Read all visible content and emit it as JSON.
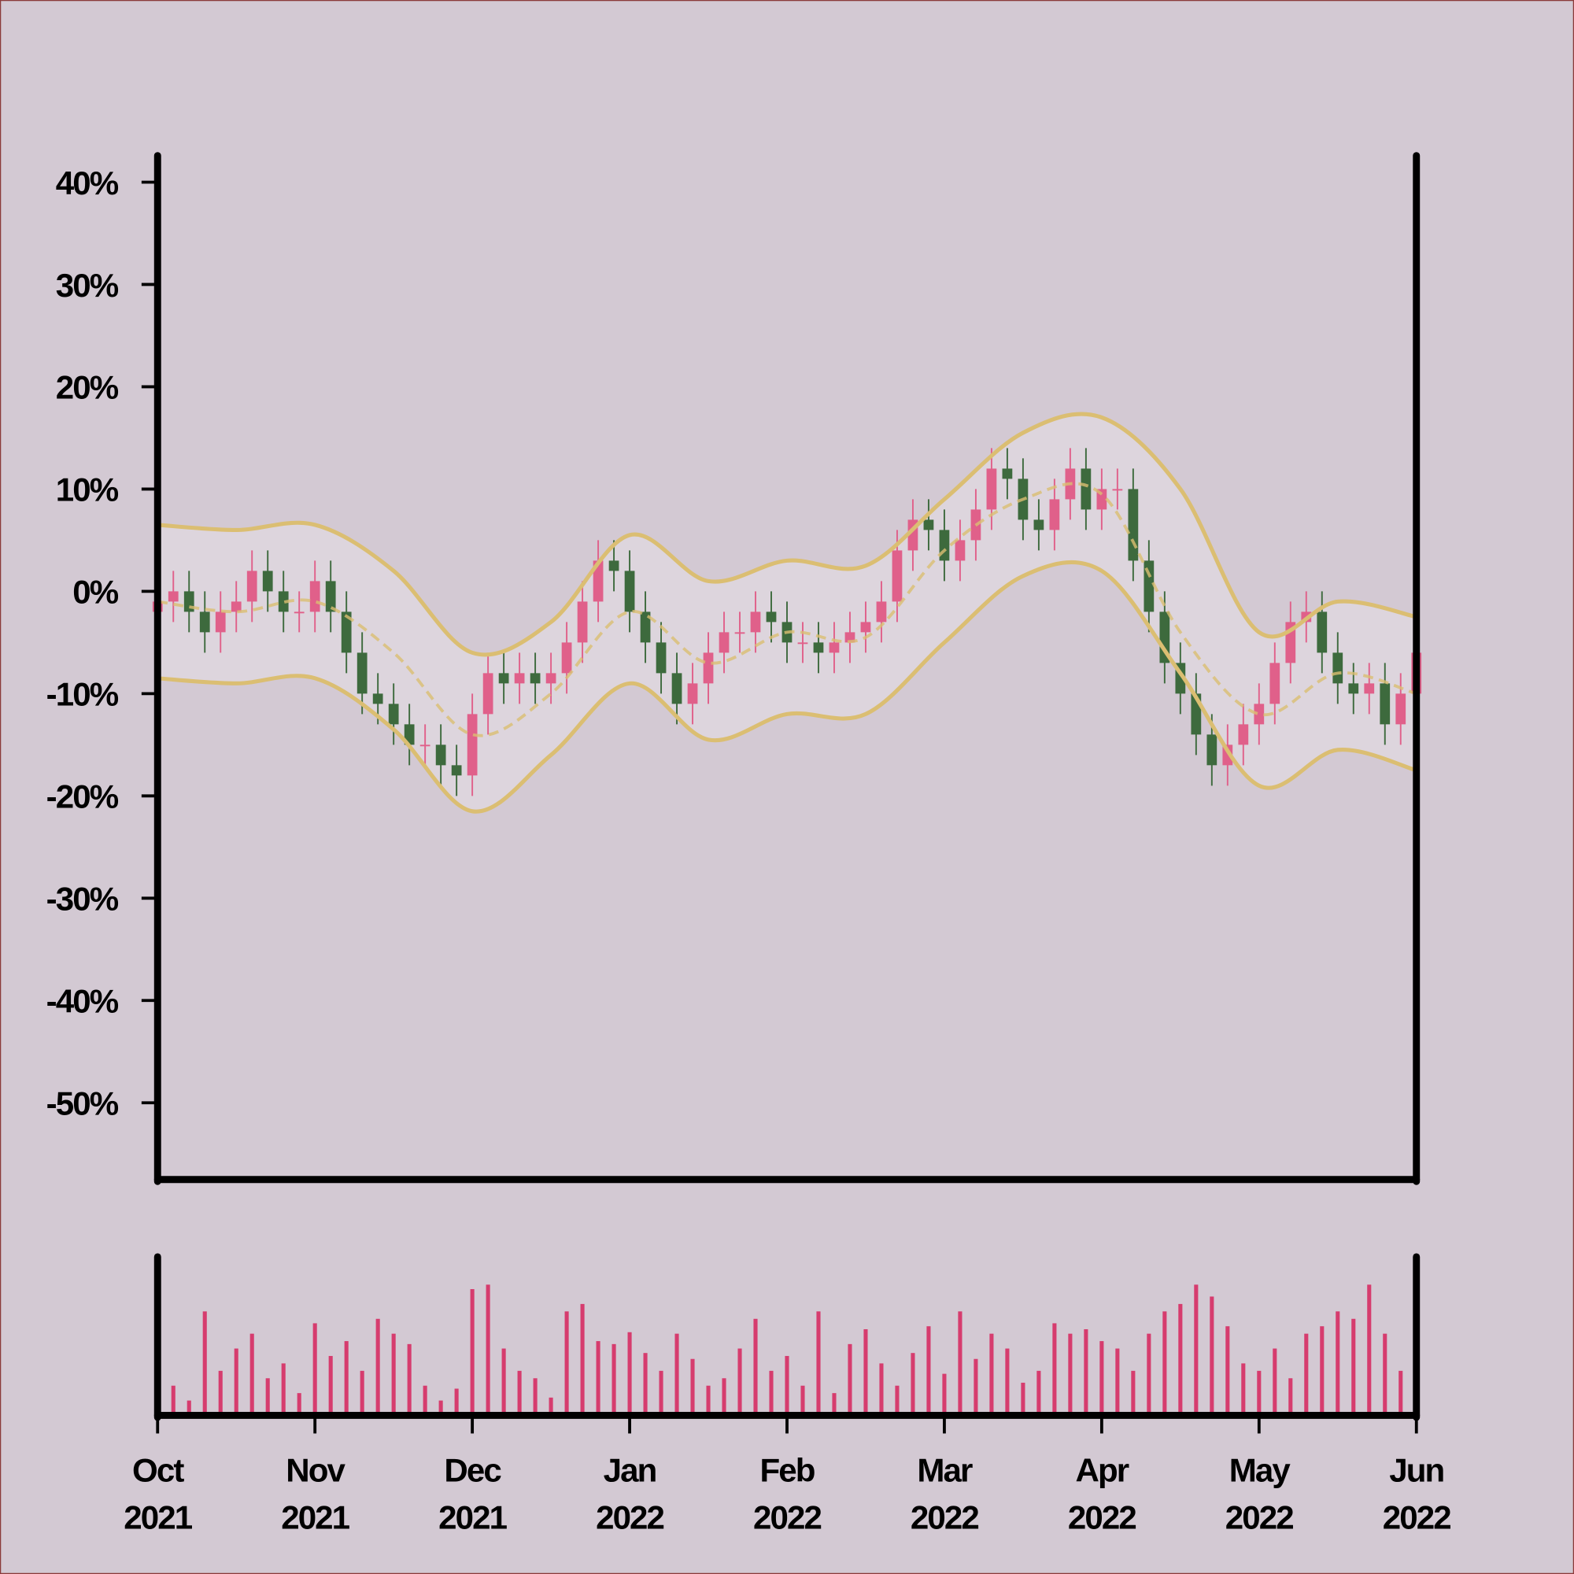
{
  "chart_data": [
    {
      "type": "candlestick",
      "x": [
        0,
        0.1,
        0.2,
        0.3,
        0.4,
        0.5,
        0.6,
        0.7,
        0.8,
        0.9,
        1,
        1.1,
        1.2,
        1.3,
        1.4,
        1.5,
        1.6,
        1.7,
        1.8,
        1.9,
        2,
        2.1,
        2.2,
        2.3,
        2.4,
        2.5,
        2.6,
        2.7,
        2.8,
        2.9,
        3,
        3.1,
        3.2,
        3.3,
        3.4,
        3.5,
        3.6,
        3.7,
        3.8,
        3.9,
        4,
        4.1,
        4.2,
        4.3,
        4.4,
        4.5,
        4.6,
        4.7,
        4.8,
        4.9,
        5,
        5.1,
        5.2,
        5.3,
        5.4,
        5.5,
        5.6,
        5.7,
        5.8,
        5.9,
        6,
        6.1,
        6.2,
        6.3,
        6.4,
        6.5,
        6.6,
        6.7,
        6.8,
        6.9,
        7,
        7.1,
        7.2,
        7.3,
        7.4,
        7.5,
        7.6,
        7.7,
        7.8,
        7.9,
        8
      ],
      "open": [
        -2,
        -1,
        0,
        -2,
        -4,
        -2,
        -1,
        2,
        0,
        -2,
        -2,
        1,
        -2,
        -6,
        -10,
        -11,
        -13,
        -15,
        -15,
        -17,
        -18,
        -12,
        -8,
        -9,
        -8,
        -9,
        -8,
        -5,
        -1,
        3,
        2,
        -2,
        -5,
        -8,
        -11,
        -9,
        -6,
        -4,
        -4,
        -2,
        -3,
        -5,
        -5,
        -6,
        -5,
        -4,
        -3,
        -1,
        4,
        7,
        6,
        3,
        5,
        8,
        12,
        11,
        7,
        6,
        9,
        12,
        8,
        10,
        10,
        3,
        -2,
        -7,
        -10,
        -14,
        -17,
        -15,
        -13,
        -11,
        -7,
        -3,
        -2,
        -6,
        -9,
        -10,
        -9,
        -13,
        -10
      ],
      "high": [
        1,
        2,
        2,
        0,
        0,
        1,
        4,
        4,
        2,
        0,
        3,
        3,
        0,
        -4,
        -8,
        -9,
        -11,
        -13,
        -13,
        -15,
        -10,
        -6,
        -6,
        -6,
        -6,
        -6,
        -3,
        1,
        5,
        5,
        4,
        0,
        -3,
        -6,
        -7,
        -4,
        -2,
        -2,
        0,
        0,
        -1,
        -3,
        -3,
        -3,
        -2,
        -1,
        1,
        6,
        9,
        9,
        8,
        7,
        10,
        14,
        14,
        13,
        9,
        11,
        14,
        14,
        12,
        12,
        12,
        5,
        0,
        -5,
        -8,
        -12,
        -13,
        -11,
        -9,
        -5,
        -1,
        0,
        0,
        -4,
        -7,
        -7,
        -7,
        -8,
        -4
      ],
      "low": [
        -4,
        -3,
        -4,
        -6,
        -6,
        -4,
        -3,
        -2,
        -4,
        -4,
        -4,
        -4,
        -8,
        -12,
        -13,
        -15,
        -17,
        -17,
        -19,
        -20,
        -20,
        -14,
        -11,
        -11,
        -11,
        -11,
        -10,
        -7,
        -3,
        0,
        -4,
        -7,
        -10,
        -13,
        -13,
        -11,
        -8,
        -6,
        -6,
        -5,
        -7,
        -7,
        -8,
        -8,
        -7,
        -6,
        -5,
        -3,
        2,
        4,
        1,
        1,
        3,
        6,
        9,
        5,
        4,
        4,
        7,
        6,
        6,
        8,
        1,
        -4,
        -9,
        -12,
        -16,
        -19,
        -19,
        -17,
        -15,
        -13,
        -9,
        -5,
        -8,
        -11,
        -12,
        -12,
        -15,
        -15,
        -12
      ],
      "close": [
        -1,
        0,
        -2,
        -4,
        -2,
        -1,
        2,
        0,
        -2,
        -2,
        1,
        -2,
        -6,
        -10,
        -11,
        -13,
        -15,
        -15,
        -17,
        -18,
        -12,
        -8,
        -9,
        -8,
        -9,
        -8,
        -5,
        -1,
        3,
        2,
        -2,
        -5,
        -8,
        -11,
        -9,
        -6,
        -4,
        -4,
        -2,
        -3,
        -5,
        -5,
        -6,
        -5,
        -4,
        -3,
        -1,
        4,
        7,
        6,
        3,
        5,
        8,
        12,
        11,
        7,
        6,
        9,
        12,
        8,
        10,
        10,
        3,
        -2,
        -7,
        -10,
        -14,
        -17,
        -15,
        -13,
        -11,
        -7,
        -3,
        -2,
        -6,
        -9,
        -10,
        -9,
        -13,
        -10,
        -6
      ],
      "up_color": "#e0608a",
      "down_color": "#3d6a3d",
      "bands": {
        "x": [
          0,
          0.5,
          1,
          1.5,
          2,
          2.5,
          3,
          3.5,
          4,
          4.5,
          5,
          5.5,
          6,
          6.5,
          7,
          7.5,
          8
        ],
        "upper": [
          6.5,
          6,
          6.5,
          2,
          -6,
          -3,
          5.5,
          1,
          3,
          2.5,
          9,
          15.5,
          17,
          10,
          -4,
          -1,
          -2.5
        ],
        "middle": [
          -1,
          -2,
          -1,
          -6,
          -14,
          -10,
          -2,
          -7,
          -4,
          -4.5,
          4,
          9,
          9.5,
          -4,
          -12,
          -8,
          -10
        ],
        "lower": [
          -8.5,
          -9,
          -8.5,
          -13.5,
          -21.5,
          -16,
          -9,
          -14.5,
          -12,
          -12,
          -5,
          1.5,
          2,
          -8,
          -19,
          -15.5,
          -17.5
        ],
        "color": "#dbbe72",
        "fill": "#ddd5dd"
      },
      "xlim": [
        0,
        8
      ],
      "ylim": [
        -57.5,
        42.6
      ],
      "yticks": [
        {
          "value": 40,
          "label": "40%"
        },
        {
          "value": 30,
          "label": "30%"
        },
        {
          "value": 20,
          "label": "20%"
        },
        {
          "value": 10,
          "label": "10%"
        },
        {
          "value": 0,
          "label": "0%"
        },
        {
          "value": -10,
          "label": "-10%"
        },
        {
          "value": -20,
          "label": "-20%"
        },
        {
          "value": -30,
          "label": "-30%"
        },
        {
          "value": -40,
          "label": "-40%"
        },
        {
          "value": -50,
          "label": "-50%"
        }
      ]
    },
    {
      "type": "bar",
      "x": [
        0,
        0.1,
        0.2,
        0.3,
        0.4,
        0.5,
        0.6,
        0.7,
        0.8,
        0.9,
        1,
        1.1,
        1.2,
        1.3,
        1.4,
        1.5,
        1.6,
        1.7,
        1.8,
        1.9,
        2,
        2.1,
        2.2,
        2.3,
        2.4,
        2.5,
        2.6,
        2.7,
        2.8,
        2.9,
        3,
        3.1,
        3.2,
        3.3,
        3.4,
        3.5,
        3.6,
        3.7,
        3.8,
        3.9,
        4,
        4.1,
        4.2,
        4.3,
        4.4,
        4.5,
        4.6,
        4.7,
        4.8,
        4.9,
        5,
        5.1,
        5.2,
        5.3,
        5.4,
        5.5,
        5.6,
        5.7,
        5.8,
        5.9,
        6,
        6.1,
        6.2,
        6.3,
        6.4,
        6.5,
        6.6,
        6.7,
        6.8,
        6.9,
        7,
        7.1,
        7.2,
        7.3,
        7.4,
        7.5,
        7.6,
        7.7,
        7.8,
        7.9,
        8
      ],
      "values": [
        60,
        20,
        10,
        70,
        30,
        45,
        55,
        25,
        35,
        15,
        62,
        40,
        50,
        30,
        65,
        55,
        48,
        20,
        10,
        18,
        85,
        88,
        45,
        30,
        25,
        12,
        70,
        75,
        50,
        48,
        56,
        42,
        30,
        55,
        38,
        20,
        25,
        45,
        65,
        30,
        40,
        20,
        70,
        15,
        48,
        58,
        35,
        20,
        42,
        60,
        28,
        70,
        38,
        55,
        45,
        22,
        30,
        62,
        55,
        58,
        50,
        45,
        30,
        55,
        70,
        75,
        88,
        80,
        60,
        35,
        30,
        45,
        25,
        55,
        60,
        70,
        65,
        88,
        55,
        30,
        50
      ],
      "color": "#d63c6e",
      "ylim": [
        0,
        100
      ],
      "xlim": [
        0,
        8
      ],
      "xticks": [
        {
          "value": 0,
          "label": "Oct 2021"
        },
        {
          "value": 1,
          "label": "Nov 2021"
        },
        {
          "value": 2,
          "label": "Dec 2021"
        },
        {
          "value": 3,
          "label": "Jan 2022"
        },
        {
          "value": 4,
          "label": "Feb 2022"
        },
        {
          "value": 5,
          "label": "Mar 2022"
        },
        {
          "value": 6,
          "label": "Apr 2022"
        },
        {
          "value": 7,
          "label": "May 2022"
        },
        {
          "value": 8,
          "label": "Jun 2022"
        }
      ]
    }
  ]
}
